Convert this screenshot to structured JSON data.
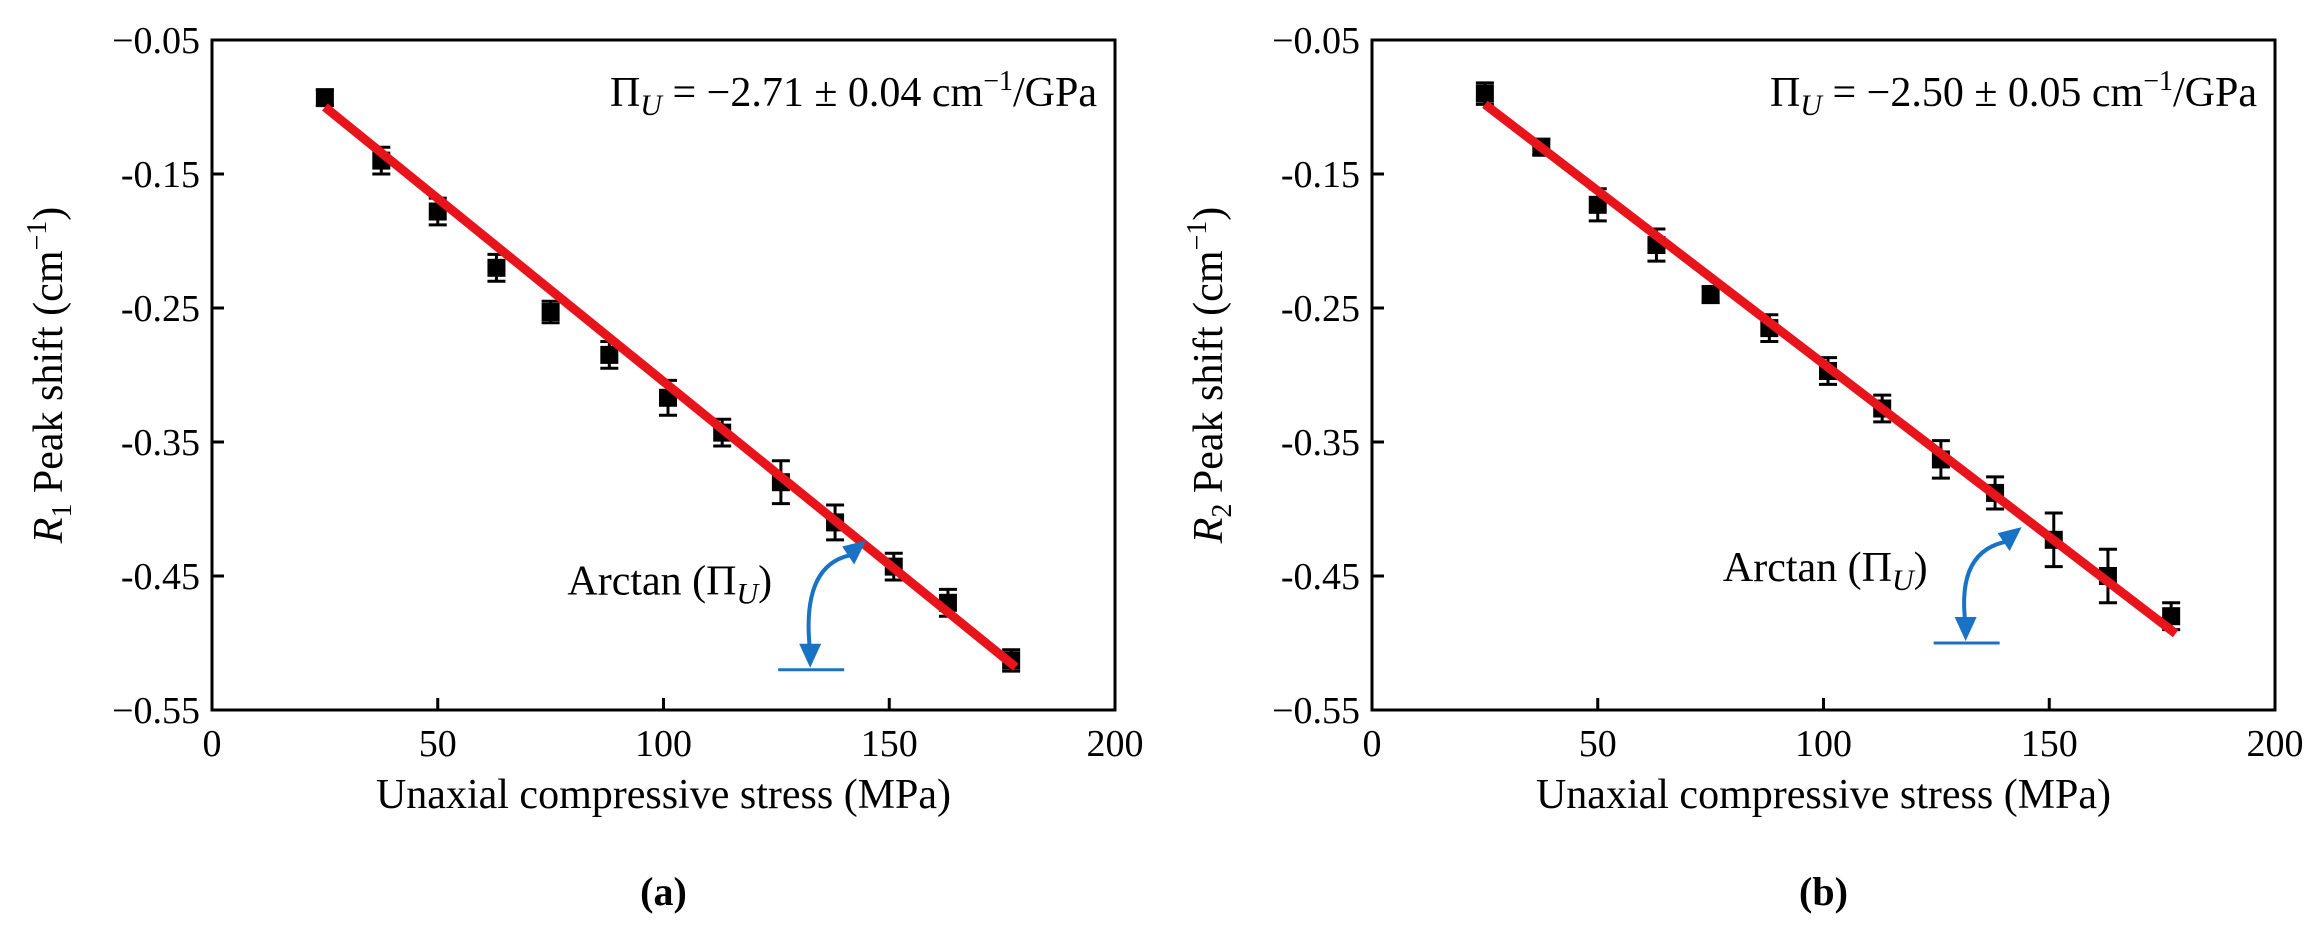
{
  "chart_data": [
    {
      "type": "scatter",
      "panel_caption": "(a)",
      "xlabel": "Unaxial compressive stress (MPa)",
      "ylabel_main": "R",
      "ylabel_sub": "1",
      "ylabel_rest": " Peak shift (cm",
      "ylabel_sup": "−1",
      "ylabel_end": ")",
      "xlim": [
        0,
        200
      ],
      "ylim": [
        -0.55,
        -0.05
      ],
      "xticks": [
        0,
        50,
        100,
        150,
        200
      ],
      "xtick_labels": [
        "0",
        "50",
        "100",
        "150",
        "200"
      ],
      "yticks": [
        -0.05,
        -0.15,
        -0.25,
        -0.35,
        -0.45,
        -0.55
      ],
      "ytick_labels": [
        "−0.05",
        "-0.15",
        "-0.25",
        "-0.35",
        "-0.45",
        "−0.55"
      ],
      "x": [
        25,
        37.5,
        50,
        63,
        75,
        88,
        101,
        113,
        126,
        138,
        151,
        163,
        177
      ],
      "y": [
        -0.093,
        -0.14,
        -0.178,
        -0.22,
        -0.253,
        -0.285,
        -0.317,
        -0.343,
        -0.38,
        -0.41,
        -0.443,
        -0.47,
        -0.513
      ],
      "err": [
        0.006,
        0.01,
        0.01,
        0.01,
        0.008,
        0.01,
        0.013,
        0.01,
        0.016,
        0.013,
        0.01,
        0.01,
        0.008
      ],
      "fit": {
        "x": [
          25,
          178
        ],
        "y": [
          -0.1,
          -0.518
        ]
      },
      "fit_color": "#e8141b",
      "marker_color": "#000000",
      "arrow_color": "#1a72c4",
      "annotation_prefix": "Π",
      "annotation_sub": "U",
      "annotation_value": " = −2.71 ± 0.04 cm",
      "annotation_sup": "−1",
      "annotation_unit": "/GPa",
      "angle_label_prefix": "Arctan (Π",
      "angle_label_sub": "U",
      "angle_label_suffix": ")",
      "angle_vertex": [
        144,
        -0.425
      ],
      "angle_base_y": -0.52
    },
    {
      "type": "scatter",
      "panel_caption": "(b)",
      "xlabel": "Unaxial compressive stress (MPa)",
      "ylabel_main": "R",
      "ylabel_sub": "2",
      "ylabel_rest": " Peak shift (cm",
      "ylabel_sup": "−1",
      "ylabel_end": ")",
      "xlim": [
        0,
        200
      ],
      "ylim": [
        -0.55,
        -0.05
      ],
      "xticks": [
        0,
        50,
        100,
        150,
        200
      ],
      "xtick_labels": [
        "0",
        "50",
        "100",
        "150",
        "200"
      ],
      "yticks": [
        -0.05,
        -0.15,
        -0.25,
        -0.35,
        -0.45,
        -0.55
      ],
      "ytick_labels": [
        "−0.05",
        "-0.15",
        "-0.25",
        "-0.35",
        "-0.45",
        "−0.55"
      ],
      "x": [
        25,
        37.5,
        50,
        63,
        75,
        88,
        101,
        113,
        126,
        138,
        151,
        163,
        177
      ],
      "y": [
        -0.09,
        -0.13,
        -0.173,
        -0.203,
        -0.24,
        -0.265,
        -0.297,
        -0.325,
        -0.363,
        -0.388,
        -0.423,
        -0.45,
        -0.48
      ],
      "err": [
        0.008,
        0.006,
        0.012,
        0.012,
        0.006,
        0.01,
        0.01,
        0.01,
        0.014,
        0.012,
        0.02,
        0.02,
        0.01
      ],
      "fit": {
        "x": [
          25,
          178
        ],
        "y": [
          -0.098,
          -0.493
        ]
      },
      "fit_color": "#e8141b",
      "marker_color": "#000000",
      "arrow_color": "#1a72c4",
      "annotation_prefix": "Π",
      "annotation_sub": "U",
      "annotation_value": " = −2.50 ± 0.05 cm",
      "annotation_sup": "−1",
      "annotation_unit": "/GPa",
      "angle_label_prefix": "Arctan (Π",
      "angle_label_sub": "U",
      "angle_label_suffix": ")",
      "angle_vertex": [
        143,
        -0.415
      ],
      "angle_base_y": -0.5
    }
  ]
}
